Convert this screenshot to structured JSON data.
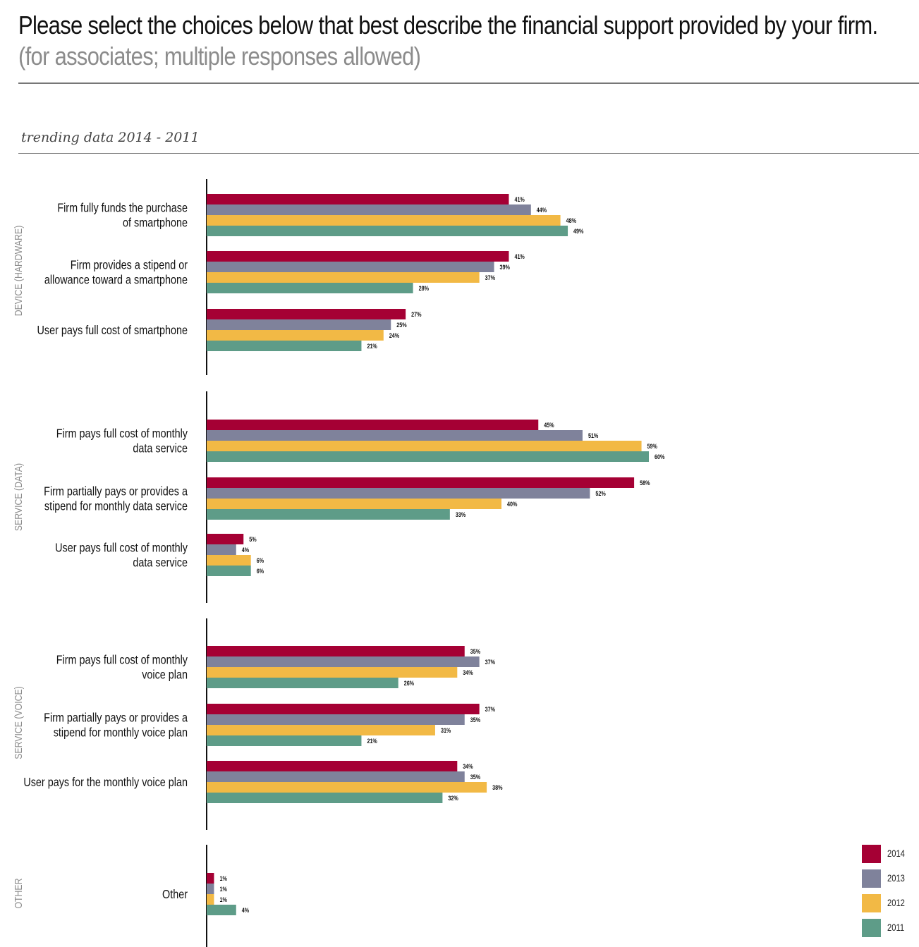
{
  "header": {
    "title": "Please select the choices below that best describe the financial support provided by your firm.",
    "subtitle": "(for associates; multiple responses allowed)",
    "caption": "trending data 2014 - 2011"
  },
  "colors": {
    "2014": "#a50034",
    "2013": "#7f829b",
    "2012": "#f2b945",
    "2011": "#5e9c88"
  },
  "chart_data": {
    "type": "bar",
    "orientation": "horizontal",
    "title": "Please select the choices below that best describe the financial support provided by your firm.",
    "subtitle": "(for associates; multiple responses allowed)",
    "xlim": [
      0,
      100
    ],
    "legend_position": "bottom-right",
    "grid": false,
    "series_names": [
      "2014",
      "2013",
      "2012",
      "2011"
    ],
    "groups": [
      {
        "name": "DEVICE (HARDWARE)",
        "categories": [
          {
            "label": [
              "Firm fully funds the purchase",
              "of smartphone"
            ],
            "values": [
              41,
              44,
              48,
              49
            ]
          },
          {
            "label": [
              "Firm provides a stipend or",
              "allowance toward a smartphone"
            ],
            "values": [
              41,
              39,
              37,
              28
            ]
          },
          {
            "label": [
              "User pays full cost of smartphone"
            ],
            "values": [
              27,
              25,
              24,
              21
            ]
          }
        ]
      },
      {
        "name": "SERVICE (DATA)",
        "categories": [
          {
            "label": [
              "Firm pays full cost of monthly",
              "data service"
            ],
            "values": [
              45,
              51,
              59,
              60
            ]
          },
          {
            "label": [
              "Firm partially pays or provides a",
              "stipend for monthly data service"
            ],
            "values": [
              58,
              52,
              40,
              33
            ]
          },
          {
            "label": [
              "User pays full cost of monthly",
              "data service"
            ],
            "values": [
              5,
              4,
              6,
              6
            ]
          }
        ]
      },
      {
        "name": "SERVICE (VOICE)",
        "categories": [
          {
            "label": [
              "Firm pays full cost of monthly",
              "voice plan"
            ],
            "values": [
              35,
              37,
              34,
              26
            ]
          },
          {
            "label": [
              "Firm partially pays or provides a",
              "stipend for monthly voice plan"
            ],
            "values": [
              37,
              35,
              31,
              21
            ]
          },
          {
            "label": [
              "User pays for the monthly voice plan"
            ],
            "values": [
              34,
              35,
              38,
              32
            ]
          }
        ]
      },
      {
        "name": "OTHER",
        "categories": [
          {
            "label": [
              "Other"
            ],
            "values": [
              1,
              1,
              1,
              4
            ]
          }
        ]
      }
    ]
  }
}
